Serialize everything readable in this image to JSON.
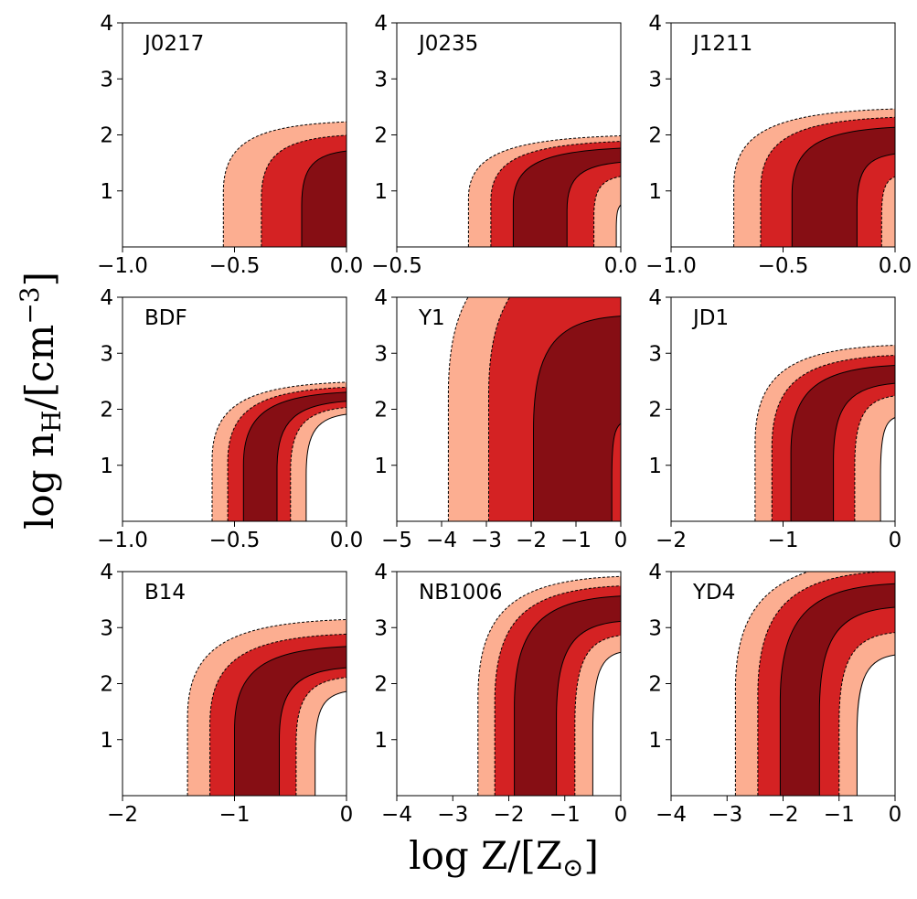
{
  "figure": {
    "ylabel": {
      "main": "log n",
      "sub": "H",
      "unit": "/[cm",
      "sup": "−3",
      "close": "]"
    },
    "xlabel": {
      "main": "log Z/[Z",
      "sub": "⊙",
      "close": "]"
    }
  },
  "colors": {
    "outer": "#fcae91",
    "middle": "#d42223",
    "inner": "#860e14",
    "axis": "#000000"
  },
  "chart_data": [
    {
      "type": "contour",
      "label": "J0217",
      "xlim": [
        -1.0,
        0.0
      ],
      "ylim": [
        0,
        4
      ],
      "xticks": [
        -1.0,
        -0.5,
        0.0
      ],
      "xticklabels": [
        "−1.0",
        "−0.5",
        "0.0"
      ],
      "yticks": [
        1,
        2,
        3,
        4
      ],
      "yticklabels": [
        "1",
        "2",
        "3",
        "4"
      ],
      "bands": [
        {
          "level": "outer",
          "left": {
            "x0": -0.55,
            "x1": 0.0,
            "top": 2.17
          }
        },
        {
          "level": "middle",
          "left": {
            "x0": -0.38,
            "x1": 0.0,
            "top": 1.93
          }
        },
        {
          "level": "inner",
          "left": {
            "x0": -0.2,
            "x1": 0.0,
            "top": 1.65
          }
        }
      ]
    },
    {
      "type": "contour",
      "label": "J0235",
      "xlim": [
        -0.5,
        0.0
      ],
      "ylim": [
        0,
        4
      ],
      "xticks": [
        -0.5,
        0.0
      ],
      "xticklabels": [
        "−0.5",
        "0.0"
      ],
      "yticks": [
        1,
        2,
        3,
        4
      ],
      "yticklabels": [
        "1",
        "2",
        "3",
        "4"
      ],
      "bands": [
        {
          "level": "outer",
          "left": {
            "x0": -0.34,
            "x1": 0.0,
            "top": 1.92
          }
        },
        {
          "level": "middle",
          "left": {
            "x0": -0.29,
            "x1": 0.0,
            "top": 1.82
          }
        },
        {
          "level": "inner",
          "left": {
            "x0": -0.24,
            "x1": 0.0,
            "top": 1.7
          }
        },
        {
          "level": "middle",
          "left": {
            "x0": -0.12,
            "x1": 0.0,
            "top": 1.45
          }
        },
        {
          "level": "outer",
          "left": {
            "x0": -0.06,
            "x1": 0.0,
            "top": 1.2
          }
        },
        {
          "level": "white",
          "left": {
            "x0": -0.01,
            "x1": 0.0,
            "top": 0.72
          }
        }
      ]
    },
    {
      "type": "contour",
      "label": "J1211",
      "xlim": [
        -1.0,
        0.0
      ],
      "ylim": [
        0,
        4
      ],
      "xticks": [
        -1.0,
        -0.5,
        0.0
      ],
      "xticklabels": [
        "−1.0",
        "−0.5",
        "0.0"
      ],
      "yticks": [
        1,
        2,
        3,
        4
      ],
      "yticklabels": [
        "1",
        "2",
        "3",
        "4"
      ],
      "bands": [
        {
          "level": "outer",
          "left": {
            "x0": -0.72,
            "x1": 0.0,
            "top": 2.4
          }
        },
        {
          "level": "middle",
          "left": {
            "x0": -0.6,
            "x1": 0.0,
            "top": 2.25
          }
        },
        {
          "level": "inner",
          "left": {
            "x0": -0.46,
            "x1": 0.0,
            "top": 2.07
          }
        },
        {
          "level": "middle",
          "left": {
            "x0": -0.17,
            "x1": 0.0,
            "top": 1.6
          }
        },
        {
          "level": "outer",
          "left": {
            "x0": -0.06,
            "x1": 0.0,
            "top": 1.2
          }
        }
      ]
    },
    {
      "type": "contour",
      "label": "BDF",
      "xlim": [
        -1.0,
        0.0
      ],
      "ylim": [
        0,
        4
      ],
      "xticks": [
        -1.0,
        -0.5,
        0.0
      ],
      "xticklabels": [
        "−1.0",
        "−0.5",
        "0.0"
      ],
      "yticks": [
        1,
        2,
        3,
        4
      ],
      "yticklabels": [
        "1",
        "2",
        "3",
        "4"
      ],
      "bands": [
        {
          "level": "outer",
          "left": {
            "x0": -0.6,
            "x1": 0.0,
            "top": 2.42
          }
        },
        {
          "level": "middle",
          "left": {
            "x0": -0.53,
            "x1": 0.0,
            "top": 2.33
          }
        },
        {
          "level": "inner",
          "left": {
            "x0": -0.46,
            "x1": 0.0,
            "top": 2.24
          }
        },
        {
          "level": "middle",
          "left": {
            "x0": -0.31,
            "x1": 0.0,
            "top": 2.08
          }
        },
        {
          "level": "outer",
          "left": {
            "x0": -0.25,
            "x1": 0.0,
            "top": 1.97
          }
        },
        {
          "level": "white",
          "left": {
            "x0": -0.18,
            "x1": 0.0,
            "top": 1.85
          }
        }
      ]
    },
    {
      "type": "contour",
      "label": "Y1",
      "xlim": [
        -5,
        0
      ],
      "ylim": [
        0,
        4
      ],
      "xticks": [
        -5,
        -4,
        -3,
        -2,
        -1,
        0
      ],
      "xticklabels": [
        "−5",
        "−4",
        "−3",
        "−2",
        "−1",
        "0"
      ],
      "yticks": [
        1,
        2,
        3,
        4
      ],
      "yticklabels": [
        "1",
        "2",
        "3",
        "4"
      ],
      "bands": [
        {
          "level": "outer",
          "left": {
            "x0": -3.85,
            "x1": -2.5,
            "top": 5.0
          }
        },
        {
          "level": "middle",
          "left": {
            "x0": -2.95,
            "x1": 1.2,
            "top": 5.0
          }
        },
        {
          "level": "inner",
          "left": {
            "x0": -1.95,
            "x1": 0.0,
            "top": 3.6
          }
        },
        {
          "level": "middle",
          "left": {
            "x0": -0.2,
            "x1": 0.0,
            "top": 1.7
          }
        }
      ]
    },
    {
      "type": "contour",
      "label": "JD1",
      "xlim": [
        -2,
        0
      ],
      "ylim": [
        0,
        4
      ],
      "xticks": [
        -2,
        -1,
        0
      ],
      "xticklabels": [
        "−2",
        "−1",
        "0"
      ],
      "yticks": [
        1,
        2,
        3,
        4
      ],
      "yticklabels": [
        "1",
        "2",
        "3",
        "4"
      ],
      "bands": [
        {
          "level": "outer",
          "left": {
            "x0": -1.25,
            "x1": 0.0,
            "top": 3.08
          }
        },
        {
          "level": "middle",
          "left": {
            "x0": -1.1,
            "x1": 0.0,
            "top": 2.9
          }
        },
        {
          "level": "inner",
          "left": {
            "x0": -0.93,
            "x1": 0.0,
            "top": 2.72
          }
        },
        {
          "level": "middle",
          "left": {
            "x0": -0.55,
            "x1": 0.0,
            "top": 2.4
          }
        },
        {
          "level": "outer",
          "left": {
            "x0": -0.36,
            "x1": 0.0,
            "top": 2.18
          }
        },
        {
          "level": "white",
          "left": {
            "x0": -0.13,
            "x1": 0.0,
            "top": 1.8
          }
        }
      ]
    },
    {
      "type": "contour",
      "label": "B14",
      "xlim": [
        -2,
        0
      ],
      "ylim": [
        0,
        4
      ],
      "xticks": [
        -2,
        -1,
        0
      ],
      "xticklabels": [
        "−2",
        "−1",
        "0"
      ],
      "yticks": [
        1,
        2,
        3,
        4
      ],
      "yticklabels": [
        "1",
        "2",
        "3",
        "4"
      ],
      "bands": [
        {
          "level": "outer",
          "left": {
            "x0": -1.42,
            "x1": 0.0,
            "top": 3.08
          }
        },
        {
          "level": "middle",
          "left": {
            "x0": -1.22,
            "x1": 0.0,
            "top": 2.82
          }
        },
        {
          "level": "inner",
          "left": {
            "x0": -1.0,
            "x1": 0.0,
            "top": 2.6
          }
        },
        {
          "level": "middle",
          "left": {
            "x0": -0.6,
            "x1": 0.0,
            "top": 2.22
          }
        },
        {
          "level": "outer",
          "left": {
            "x0": -0.45,
            "x1": 0.0,
            "top": 2.05
          }
        },
        {
          "level": "white",
          "left": {
            "x0": -0.28,
            "x1": 0.0,
            "top": 1.8
          }
        }
      ]
    },
    {
      "type": "contour",
      "label": "NB1006",
      "xlim": [
        -4,
        0
      ],
      "ylim": [
        0,
        4
      ],
      "xticks": [
        -4,
        -3,
        -2,
        -1,
        0
      ],
      "xticklabels": [
        "−4",
        "−3",
        "−2",
        "−1",
        "0"
      ],
      "yticks": [
        1,
        2,
        3,
        4
      ],
      "yticklabels": [
        "1",
        "2",
        "3",
        "4"
      ],
      "bands": [
        {
          "level": "outer",
          "left": {
            "x0": -2.55,
            "x1": 0.0,
            "top": 3.85
          }
        },
        {
          "level": "middle",
          "left": {
            "x0": -2.25,
            "x1": 0.0,
            "top": 3.68
          }
        },
        {
          "level": "inner",
          "left": {
            "x0": -1.9,
            "x1": 0.0,
            "top": 3.5
          }
        },
        {
          "level": "middle",
          "left": {
            "x0": -1.15,
            "x1": 0.0,
            "top": 3.05
          }
        },
        {
          "level": "outer",
          "left": {
            "x0": -0.82,
            "x1": 0.0,
            "top": 2.8
          }
        },
        {
          "level": "white",
          "left": {
            "x0": -0.5,
            "x1": 0.0,
            "top": 2.5
          }
        }
      ]
    },
    {
      "type": "contour",
      "label": "YD4",
      "xlim": [
        -4,
        0
      ],
      "ylim": [
        0,
        4
      ],
      "xticks": [
        -4,
        -3,
        -2,
        -1,
        0
      ],
      "xticklabels": [
        "−4",
        "−3",
        "−2",
        "−1",
        "0"
      ],
      "yticks": [
        1,
        2,
        3,
        4
      ],
      "yticklabels": [
        "1",
        "2",
        "3",
        "4"
      ],
      "bands": [
        {
          "level": "outer",
          "left": {
            "x0": -2.85,
            "x1": 0.4,
            "top": 4.2
          }
        },
        {
          "level": "middle",
          "left": {
            "x0": -2.45,
            "x1": 0.0,
            "top": 3.95
          }
        },
        {
          "level": "inner",
          "left": {
            "x0": -2.05,
            "x1": 0.0,
            "top": 3.72
          }
        },
        {
          "level": "middle",
          "left": {
            "x0": -1.35,
            "x1": 0.0,
            "top": 3.3
          }
        },
        {
          "level": "outer",
          "left": {
            "x0": -1.0,
            "x1": 0.0,
            "top": 2.85
          }
        },
        {
          "level": "white",
          "left": {
            "x0": -0.68,
            "x1": 0.0,
            "top": 2.45
          }
        }
      ]
    }
  ]
}
